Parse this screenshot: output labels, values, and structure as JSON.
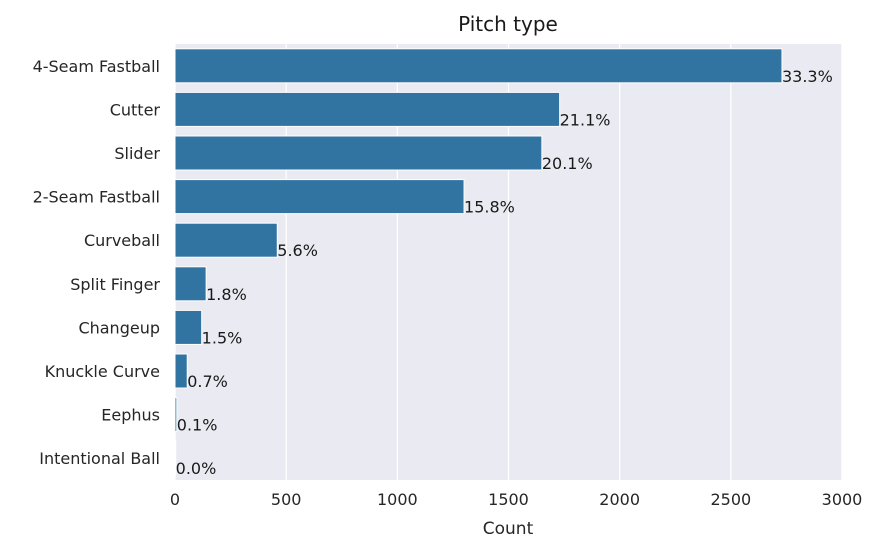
{
  "chart_data": {
    "type": "bar",
    "orientation": "horizontal",
    "title": "Pitch type",
    "xlabel": "Count",
    "ylabel": "",
    "xlim": [
      0,
      3000
    ],
    "x_ticks": [
      0,
      500,
      1000,
      1500,
      2000,
      2500,
      3000
    ],
    "grid": true,
    "bar_color": "#3274a1",
    "background_color": "#eaeaf2",
    "categories": [
      "4-Seam Fastball",
      "Cutter",
      "Slider",
      "2-Seam Fastball",
      "Curveball",
      "Split Finger",
      "Changeup",
      "Knuckle Curve",
      "Eephus",
      "Intentional Ball"
    ],
    "values": [
      2730,
      1730,
      1650,
      1300,
      460,
      140,
      120,
      55,
      8,
      3
    ],
    "labels": [
      "33.3%",
      "21.1%",
      "20.1%",
      "15.8%",
      "5.6%",
      "1.8%",
      "1.5%",
      "0.7%",
      "0.1%",
      "0.0%"
    ]
  }
}
